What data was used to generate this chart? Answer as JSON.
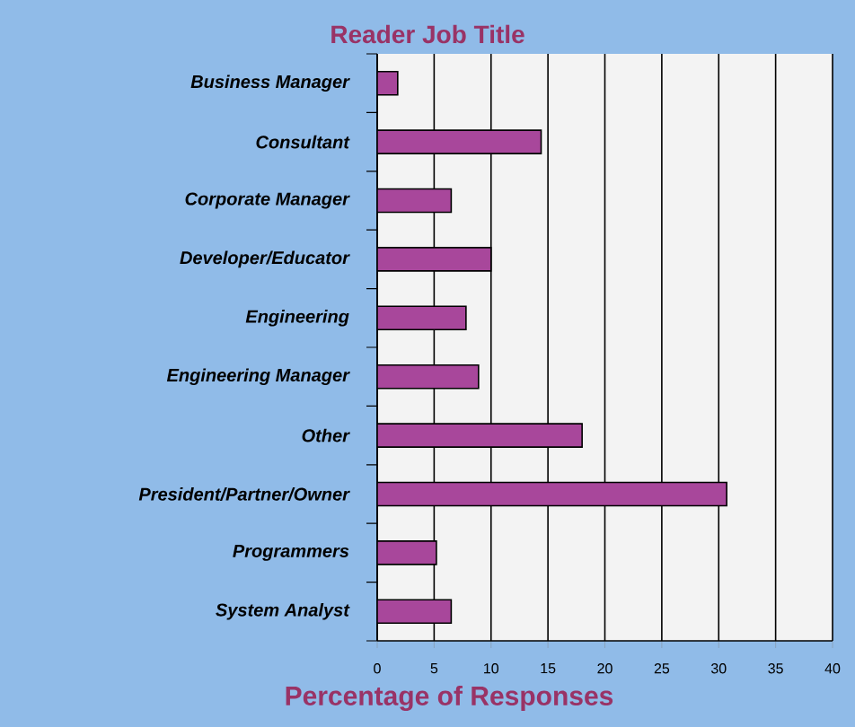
{
  "chart_data": {
    "type": "bar",
    "orientation": "horizontal",
    "title": "Reader Job Title",
    "xlabel": "Percentage of Responses",
    "categories": [
      "Business Manager",
      "Consultant",
      "Corporate Manager",
      "Developer/Educator",
      "Engineering",
      "Engineering Manager",
      "Other",
      "President/Partner/Owner",
      "Programmers",
      "System Analyst"
    ],
    "values": [
      1.8,
      14.4,
      6.5,
      10,
      7.8,
      8.9,
      18,
      30.7,
      5.2,
      6.5
    ],
    "color": "#a8479b",
    "xlim": [
      0,
      40
    ],
    "xticks": [
      0,
      5,
      10,
      15,
      20,
      25,
      30,
      35,
      40
    ],
    "grid": "x"
  }
}
